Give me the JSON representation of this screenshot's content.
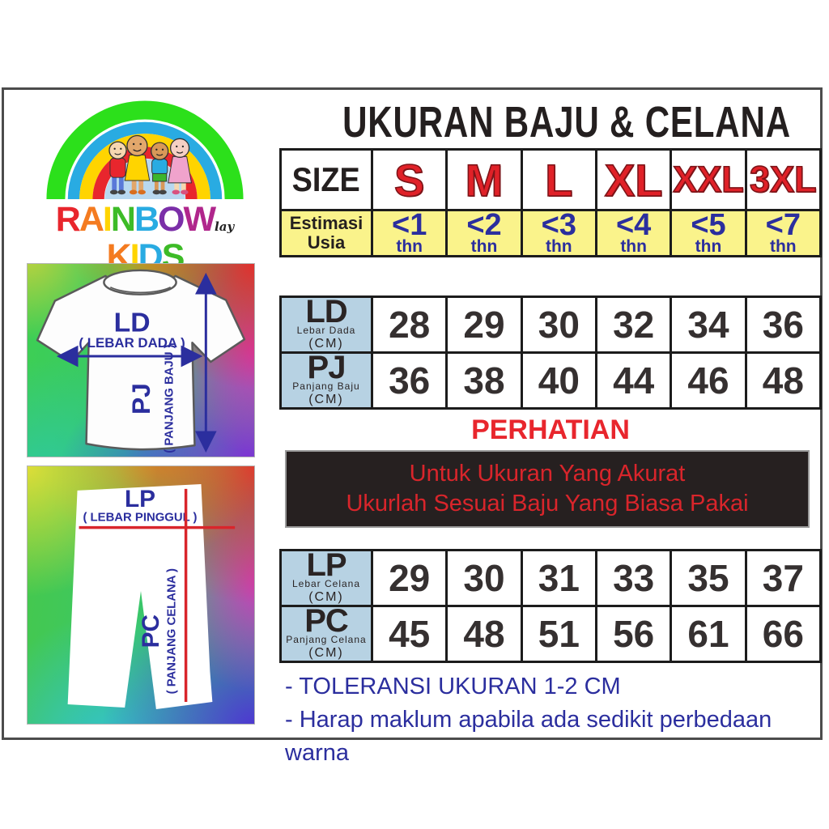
{
  "title": "UKURAN BAJU & CELANA",
  "brand": {
    "word1": [
      [
        "R",
        "#e8262d"
      ],
      [
        "A",
        "#f47b20"
      ],
      [
        "I",
        "#ffd400"
      ],
      [
        "N",
        "#3dbb27"
      ],
      [
        "B",
        "#29abe2"
      ],
      [
        "O",
        "#7b2fa8"
      ],
      [
        "W",
        "#b0268c"
      ]
    ],
    "suffix": "lay",
    "word2": [
      [
        "K",
        "#f47b20"
      ],
      [
        "I",
        "#ffd400"
      ],
      [
        "D",
        "#29abe2"
      ],
      [
        "S",
        "#3dbb27"
      ]
    ]
  },
  "size_table": {
    "size_header": "SIZE",
    "sizes": [
      "S",
      "M",
      "L",
      "XL",
      "XXL",
      "3XL"
    ],
    "age_header": [
      "Estimasi",
      "Usia"
    ],
    "age_values": [
      "<1",
      "<2",
      "<3",
      "<4",
      "<5",
      "<7"
    ],
    "age_unit": "thn"
  },
  "shirt_diagram": {
    "code_w": "LD",
    "label_w": "( LEBAR DADA )",
    "code_l": "PJ",
    "label_l": "( PANJANG BAJU )"
  },
  "pants_diagram": {
    "code_w": "LP",
    "label_w": "( LEBAR PINGGUL )",
    "code_l": "PC",
    "label_l": "( PANJANG CELANA )"
  },
  "shirt_table": {
    "rows": [
      {
        "code": "LD",
        "label": "Lebar Dada",
        "unit": "(CM)",
        "values": [
          "28",
          "29",
          "30",
          "32",
          "34",
          "36"
        ]
      },
      {
        "code": "PJ",
        "label": "Panjang Baju",
        "unit": "(CM)",
        "values": [
          "36",
          "38",
          "40",
          "44",
          "46",
          "48"
        ]
      }
    ]
  },
  "pants_table": {
    "rows": [
      {
        "code": "LP",
        "label": "Lebar Celana",
        "unit": "(CM)",
        "values": [
          "29",
          "30",
          "31",
          "33",
          "35",
          "37"
        ]
      },
      {
        "code": "PC",
        "label": "Panjang Celana",
        "unit": "(CM)",
        "values": [
          "45",
          "48",
          "51",
          "56",
          "61",
          "66"
        ]
      }
    ]
  },
  "attention": {
    "title": "PERHATIAN",
    "lines": [
      "Untuk Ukuran Yang Akurat",
      "Ukurlah Sesuai Baju Yang Biasa Pakai"
    ]
  },
  "notes": [
    "- TOLERANSI UKURAN 1-2 CM",
    "- Harap maklum apabila ada sedikit perbedaan warna"
  ],
  "colors": {
    "size_red": "#e02128",
    "age_blue": "#2b2e9e",
    "yellow_bg": "#faf38b",
    "header_blue_bg": "#b7d2e3",
    "number": "#353030",
    "attention_red": "#e8262d",
    "box_bg": "#262020",
    "box_text_red": "#d9252b",
    "note_blue": "#2b2e9e",
    "measure_line_red": "#d9252b",
    "diagram_navy": "#2b2e9e"
  }
}
